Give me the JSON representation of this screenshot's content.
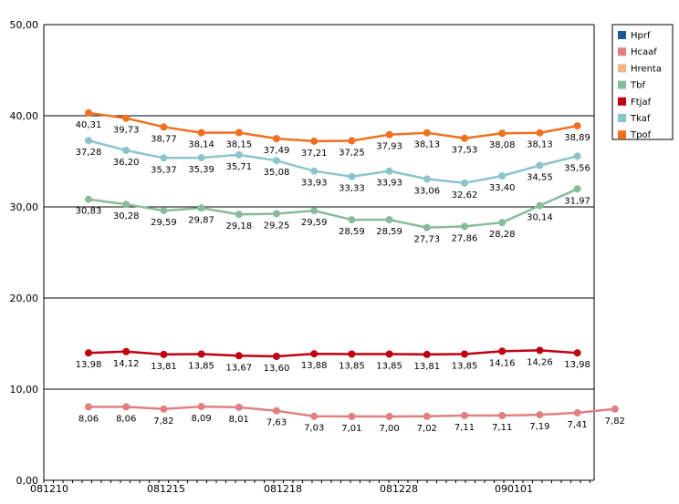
{
  "chart_data": {
    "type": "line",
    "title": "",
    "xlabel": "",
    "ylabel": "",
    "ylim": [
      0,
      50
    ],
    "y_ticks": [
      "0,00",
      "10,00",
      "20,00",
      "30,00",
      "40,00",
      "50,00"
    ],
    "x_tick_labels": [
      "081210",
      "081215",
      "081218",
      "081228",
      "090101"
    ],
    "grid": "horizontal",
    "legend_position": "top-right",
    "series": [
      {
        "name": "Hprf",
        "color": "#1f5a96",
        "values": []
      },
      {
        "name": "Hcaaf",
        "color": "#e08080",
        "values": [
          8.06,
          8.06,
          7.82,
          8.09,
          8.01,
          7.63,
          7.03,
          7.01,
          7.0,
          7.02,
          7.11,
          7.11,
          7.19,
          7.41,
          7.82
        ],
        "labels": [
          "8,06",
          "8,06",
          "7,82",
          "8,09",
          "8,01",
          "7,63",
          "7,03",
          "7,01",
          "7,00",
          "7,02",
          "7,11",
          "7,11",
          "7,19",
          "7,41",
          "7,82"
        ]
      },
      {
        "name": "Hrenta",
        "color": "#f4b183",
        "values": []
      },
      {
        "name": "Tbf",
        "color": "#88bb99",
        "values": [
          30.83,
          30.28,
          29.59,
          29.87,
          29.18,
          29.25,
          29.59,
          28.59,
          28.59,
          27.73,
          27.86,
          28.28,
          30.14,
          31.97
        ],
        "labels": [
          "30,83",
          "30,28",
          "29,59",
          "29,87",
          "29,18",
          "29,25",
          "29,59",
          "28,59",
          "28,59",
          "27,73",
          "27,86",
          "28,28",
          "30,14",
          "31,97"
        ]
      },
      {
        "name": "Ftjaf",
        "color": "#c00010",
        "values": [
          13.98,
          14.12,
          13.81,
          13.85,
          13.67,
          13.6,
          13.88,
          13.85,
          13.85,
          13.81,
          13.85,
          14.16,
          14.26,
          13.98
        ],
        "labels": [
          "13,98",
          "14,12",
          "13,81",
          "13,85",
          "13,67",
          "13,60",
          "13,88",
          "13,85",
          "13,85",
          "13,81",
          "13,85",
          "14,16",
          "14,26",
          "13,98"
        ]
      },
      {
        "name": "Tkaf",
        "color": "#8cc4cc",
        "values": [
          37.28,
          36.2,
          35.37,
          35.39,
          35.71,
          35.08,
          33.93,
          33.33,
          33.93,
          33.06,
          32.62,
          33.4,
          34.55,
          35.56
        ],
        "labels": [
          "37,28",
          "36,20",
          "35,37",
          "35,39",
          "35,71",
          "35,08",
          "33,93",
          "33,33",
          "33,93",
          "33,06",
          "32,62",
          "33,40",
          "34,55",
          "35,56"
        ]
      },
      {
        "name": "Tpof",
        "color": "#f07020",
        "values": [
          40.31,
          39.73,
          38.77,
          38.14,
          38.15,
          37.49,
          37.21,
          37.25,
          37.93,
          38.13,
          37.53,
          38.08,
          38.13,
          38.89
        ],
        "labels": [
          "40,31",
          "39,73",
          "38,77",
          "38,14",
          "38,15",
          "37,49",
          "37,21",
          "37,25",
          "37,93",
          "38,13",
          "37,53",
          "38,08",
          "38,13",
          "38,89"
        ]
      }
    ]
  }
}
